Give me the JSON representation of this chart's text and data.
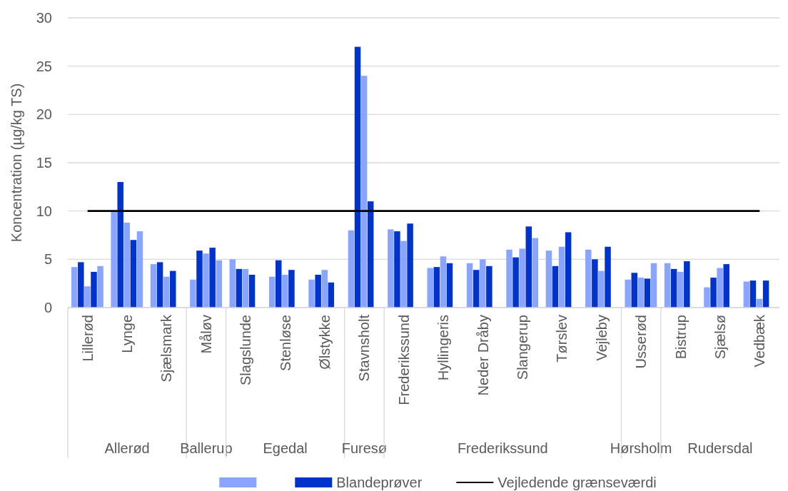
{
  "chart_data": {
    "type": "bar",
    "ylabel": "Koncentration (µg/kg TS)",
    "categories": [
      "Lillerød",
      "Lynge",
      "Sjælsmark",
      "Måløv",
      "Slagslunde",
      "Stenløse",
      "Ølstykke",
      "Stavnsholt",
      "Frederikssund",
      "Hyllingeris",
      "Neder Dråby",
      "Slangerup",
      "Tørslev",
      "Vejleby",
      "Usserød",
      "Bistrup",
      "Sjælsø",
      "Vedbæk"
    ],
    "series": [
      {
        "color": "#8aa5ff",
        "values": [
          4.2,
          10,
          4.5,
          2.9,
          5.0,
          3.2,
          2.9,
          8.0,
          8.1,
          4.1,
          4.6,
          6.0,
          5.9,
          6.0,
          2.9,
          4.6,
          2.1,
          2.7
        ]
      },
      {
        "name": "Blandeprøver",
        "color": "#0033cc",
        "values": [
          4.7,
          13,
          4.7,
          5.9,
          4.0,
          4.9,
          3.4,
          27,
          7.9,
          4.2,
          3.9,
          5.2,
          4.3,
          5.0,
          3.6,
          4.0,
          3.1,
          2.8
        ]
      },
      {
        "color": "#8aa5ff",
        "values": [
          2.2,
          8.8,
          3.2,
          5.6,
          4.0,
          3.4,
          3.9,
          24,
          6.9,
          5.3,
          5.0,
          6.1,
          6.3,
          3.8,
          3.1,
          3.7,
          4.1,
          0.9
        ]
      },
      {
        "color": "#0033cc",
        "values": [
          3.7,
          7.0,
          3.8,
          6.2,
          3.4,
          3.9,
          2.6,
          11,
          8.7,
          4.6,
          4.3,
          8.4,
          7.8,
          6.3,
          3.0,
          4.8,
          4.5,
          2.8
        ]
      },
      {
        "color": "#8aa5ff",
        "values": [
          4.3,
          7.9,
          null,
          4.9,
          null,
          null,
          null,
          null,
          null,
          null,
          null,
          7.2,
          null,
          null,
          4.6,
          null,
          null,
          null
        ]
      }
    ],
    "ylim": [
      0,
      30
    ],
    "yticks": [
      0,
      5,
      10,
      15,
      20,
      25,
      30
    ],
    "grid": "y",
    "legend": "bottom",
    "ref_lines": [
      {
        "axis": "y",
        "value": 10,
        "label": "Vejledende grænseværdi",
        "color": "#000000"
      }
    ],
    "annotations": [
      "Allerød",
      "Ballerup",
      "Egedal",
      "Furesø",
      "Frederikssund",
      "Hørsholm",
      "Rudersdal"
    ]
  }
}
